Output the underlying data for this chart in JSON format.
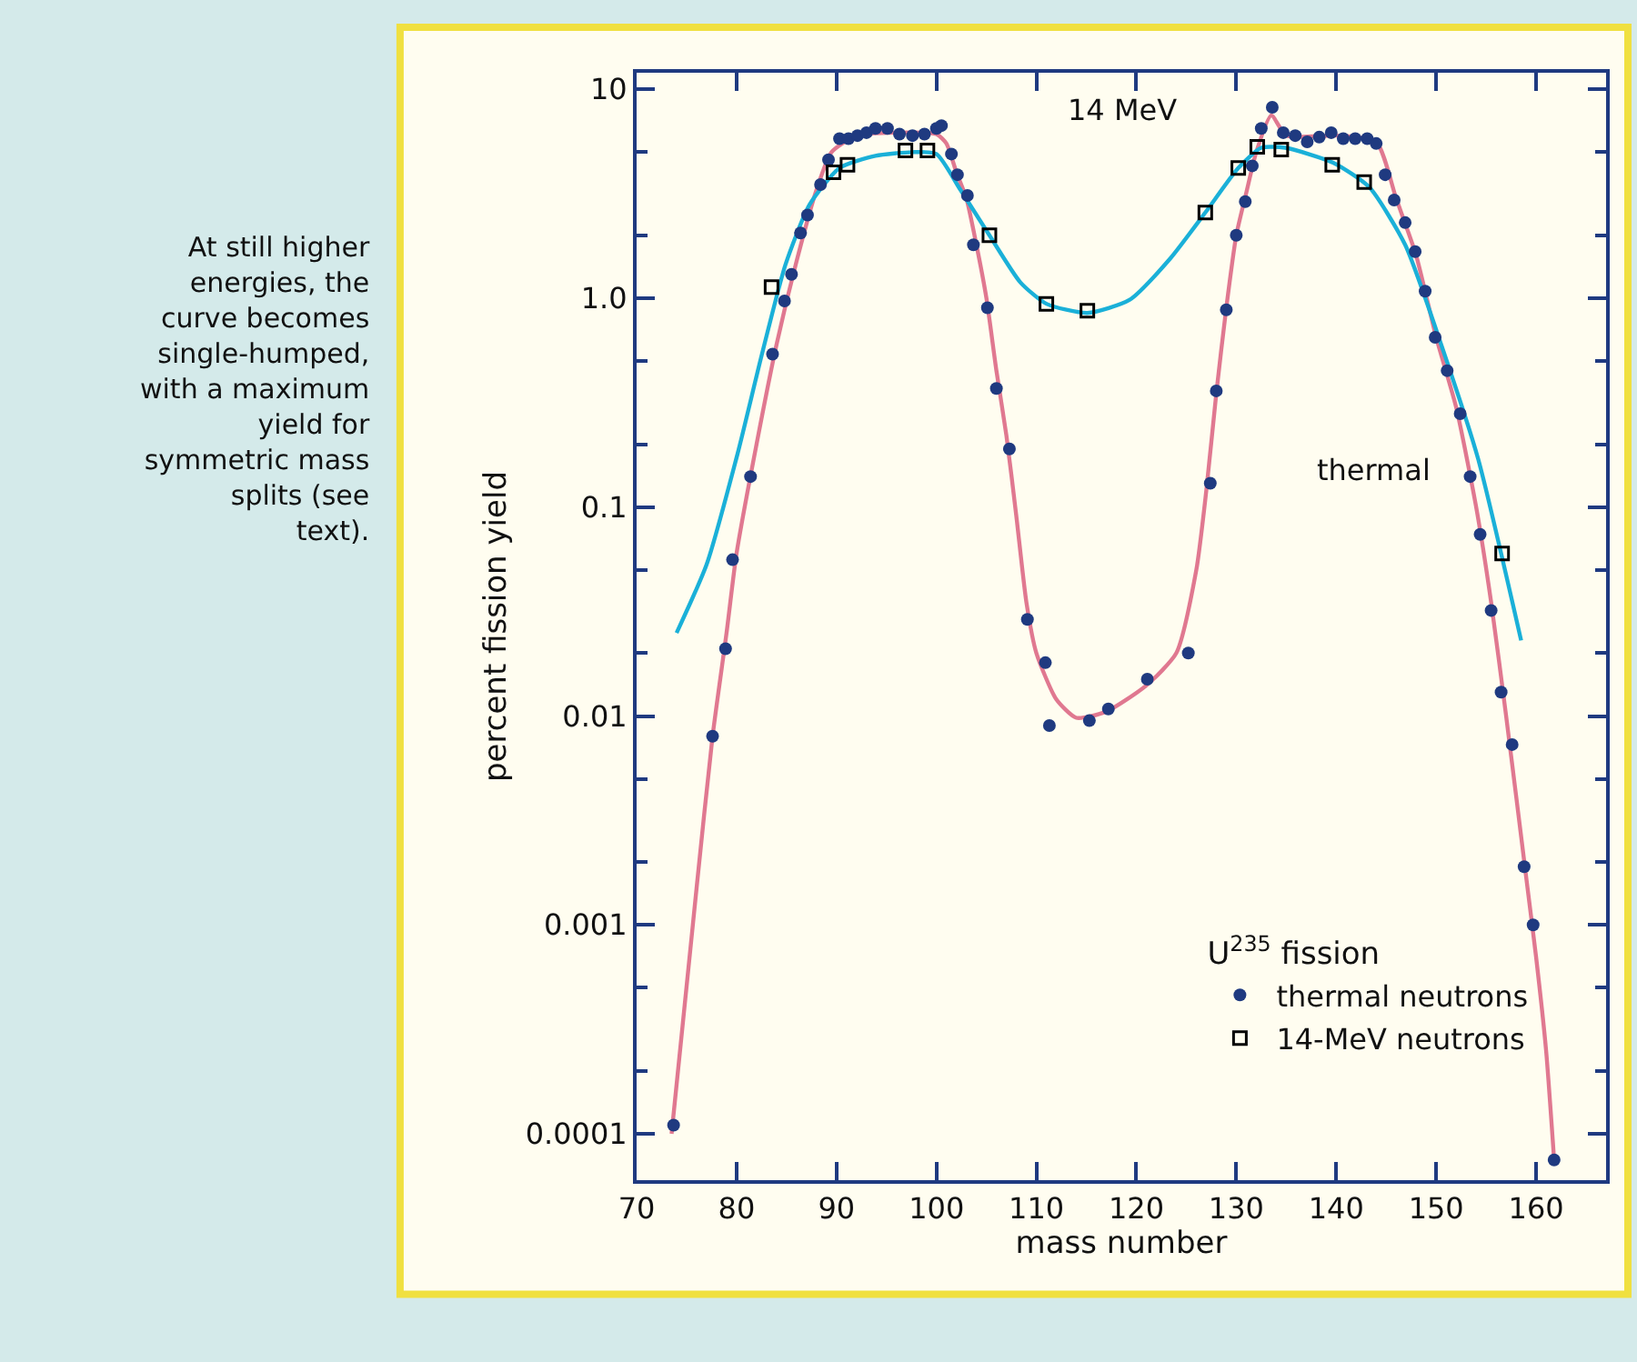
{
  "chart_data": {
    "type": "scatter",
    "xlabel": "mass number",
    "ylabel": "percent fission yield",
    "legend_title": "U$^{235}$ fission",
    "legend": "bottom right",
    "grid": false,
    "log": "y",
    "xlim": [
      70,
      167
    ],
    "xticks": [
      70,
      80,
      90,
      100,
      110,
      120,
      130,
      140,
      150,
      160
    ],
    "ylim": [
      6e-05,
      12
    ],
    "yticks": [
      {
        "value": 0.0001,
        "label": "0.0001"
      },
      {
        "value": 0.001,
        "label": "0.001"
      },
      {
        "value": 0.01,
        "label": "0.01"
      },
      {
        "value": 0.1,
        "label": "0.1"
      },
      {
        "value": 1,
        "label": "1.0"
      },
      {
        "value": 10,
        "label": "10"
      }
    ],
    "series": [
      {
        "type": "line",
        "color": "#e07890",
        "line_style": "solid",
        "marker": "none",
        "x": [
          73.5,
          76,
          77.6,
          79,
          80,
          82,
          84,
          86,
          88,
          89.5,
          92,
          96,
          100,
          101,
          102,
          103,
          104,
          105,
          106,
          107,
          108,
          109,
          110,
          112,
          114,
          117,
          121,
          124,
          126,
          127,
          128,
          129,
          130,
          131,
          132,
          133.5,
          135,
          140,
          144,
          146,
          148,
          150,
          152,
          154,
          155.5,
          157,
          159,
          160,
          161,
          161.8
        ],
        "values": [
          0.0001,
          0.0015,
          0.008,
          0.025,
          0.06,
          0.2,
          0.6,
          1.5,
          3.3,
          5.0,
          6.0,
          6.2,
          6.1,
          5.5,
          4.0,
          3.0,
          1.8,
          1.0,
          0.45,
          0.22,
          0.09,
          0.035,
          0.02,
          0.012,
          0.0098,
          0.0105,
          0.014,
          0.02,
          0.05,
          0.12,
          0.35,
          0.9,
          2.0,
          3.2,
          5.0,
          7.5,
          6.0,
          6.0,
          5.6,
          3.0,
          1.6,
          0.65,
          0.3,
          0.1,
          0.035,
          0.01,
          0.0017,
          0.0007,
          0.00025,
          7.5e-05
        ]
      },
      {
        "type": "line",
        "color": "#1ab0d8",
        "line_style": "solid",
        "marker": "none",
        "x": [
          74,
          77,
          80.1,
          82.5,
          84.9,
          87.3,
          90.3,
          93.9,
          97.6,
          100,
          102.4,
          105.3,
          108.4,
          111,
          115.1,
          119.3,
          123.4,
          126.9,
          130.2,
          132.5,
          134.9,
          139.7,
          143.3,
          146.9,
          150.5,
          154.2,
          158.5
        ],
        "values": [
          0.025,
          0.053,
          0.18,
          0.53,
          1.45,
          2.8,
          4.2,
          4.8,
          5.0,
          4.9,
          3.3,
          2.0,
          1.19,
          0.94,
          0.85,
          0.98,
          1.55,
          2.57,
          4.2,
          5.25,
          5.25,
          4.45,
          3.4,
          1.8,
          0.6,
          0.17,
          0.023
        ]
      },
      {
        "name": "thermal neutrons",
        "color": "#1f3a80",
        "marker": "circle",
        "x": [
          73.7,
          77.6,
          78.9,
          79.6,
          81.4,
          83.6,
          84.8,
          85.5,
          86.4,
          87.1,
          88.4,
          89.2,
          90.3,
          91.2,
          92.1,
          93,
          93.9,
          95.1,
          96.3,
          97.6,
          98.8,
          100,
          100.5,
          101.5,
          102.1,
          103.1,
          103.7,
          105.1,
          106,
          107.3,
          109.1,
          110.9,
          111.3,
          115.3,
          117.2,
          121.1,
          125.2,
          127.4,
          128,
          129,
          130,
          130.9,
          131.6,
          132.5,
          133.6,
          134.7,
          135.9,
          137.1,
          138.3,
          139.5,
          140.7,
          141.9,
          143.1,
          144,
          144.9,
          145.8,
          146.9,
          147.9,
          148.9,
          149.9,
          151.1,
          152.4,
          153.4,
          154.4,
          155.5,
          156.5,
          157.6,
          158.8,
          159.7,
          161.8
        ],
        "values": [
          0.00011,
          0.008,
          0.021,
          0.056,
          0.14,
          0.54,
          0.97,
          1.3,
          2.05,
          2.5,
          3.5,
          4.6,
          5.8,
          5.8,
          6.0,
          6.2,
          6.5,
          6.5,
          6.1,
          6.0,
          6.1,
          6.5,
          6.7,
          4.9,
          3.9,
          3.1,
          1.8,
          0.9,
          0.37,
          0.19,
          0.029,
          0.018,
          0.009,
          0.0095,
          0.0108,
          0.015,
          0.02,
          0.13,
          0.36,
          0.88,
          2.0,
          2.9,
          4.3,
          6.5,
          8.2,
          6.2,
          6.0,
          5.6,
          5.9,
          6.2,
          5.8,
          5.8,
          5.8,
          5.5,
          3.9,
          2.95,
          2.3,
          1.67,
          1.08,
          0.65,
          0.45,
          0.28,
          0.14,
          0.074,
          0.032,
          0.013,
          0.0073,
          0.0019,
          0.001,
          7.5e-05
        ]
      },
      {
        "name": "14-MeV neutrons",
        "color": "#000000",
        "marker": "square",
        "x": [
          83.5,
          89.7,
          91.1,
          96.9,
          99.1,
          105.3,
          111,
          115.1,
          126.9,
          130.2,
          132.1,
          134.5,
          139.6,
          142.8,
          156.6
        ],
        "values": [
          1.13,
          4.0,
          4.35,
          5.1,
          5.1,
          2.0,
          0.94,
          0.87,
          2.57,
          4.2,
          5.3,
          5.15,
          4.35,
          3.6,
          0.06
        ]
      }
    ],
    "annotations": [
      "14 MeV",
      "thermal",
      "At still higher energies, the curve becomes single-humped, with a maximum yield for symmetric mass splits (see text)."
    ]
  }
}
